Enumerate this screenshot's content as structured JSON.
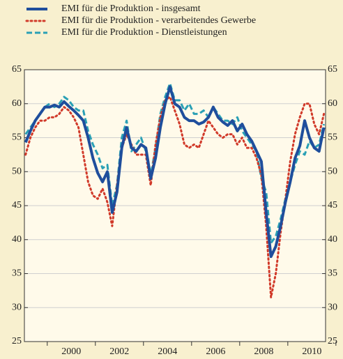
{
  "chart_data": {
    "type": "line",
    "x": [
      1998.6,
      1998.8,
      1999.0,
      1999.2,
      1999.4,
      1999.6,
      1999.8,
      2000.0,
      2000.2,
      2000.4,
      2000.6,
      2000.8,
      2001.0,
      2001.2,
      2001.4,
      2001.6,
      2001.8,
      2002.0,
      2002.2,
      2002.4,
      2002.6,
      2002.8,
      2003.0,
      2003.2,
      2003.4,
      2003.6,
      2003.8,
      2004.0,
      2004.2,
      2004.4,
      2004.6,
      2004.8,
      2005.0,
      2005.2,
      2005.4,
      2005.6,
      2005.8,
      2006.0,
      2006.2,
      2006.4,
      2006.6,
      2006.8,
      2007.0,
      2007.2,
      2007.4,
      2007.6,
      2007.8,
      2008.0,
      2008.2,
      2008.4,
      2008.6,
      2008.8,
      2009.0,
      2009.2,
      2009.4,
      2009.6,
      2009.8,
      2010.0,
      2010.2,
      2010.4,
      2010.6,
      2010.8,
      2011.0
    ],
    "series": [
      {
        "name": "EMI für die Produktion - insgesamt",
        "color": "#1f4e9c",
        "style": "solid",
        "values": [
          54.3,
          56,
          57.5,
          58.5,
          59.5,
          59.5,
          59.8,
          59.5,
          60.3,
          59.6,
          59,
          58.3,
          57.5,
          55,
          52,
          49.8,
          48.5,
          50,
          44,
          47,
          53.5,
          56.5,
          53.5,
          53,
          54,
          53.5,
          49,
          52,
          56.5,
          60,
          62.5,
          60,
          59.5,
          58,
          57.5,
          57.5,
          57,
          57.3,
          58,
          59.5,
          58,
          57.3,
          56.8,
          57.5,
          56,
          57,
          55.5,
          54.5,
          53,
          51.5,
          44,
          37.5,
          39,
          42,
          45.5,
          48.5,
          52,
          53.8,
          57.5,
          55,
          53.5,
          53,
          56.5
        ]
      },
      {
        "name": "EMI für die Produktion - verarbeitendes Gewerbe",
        "color": "#d13a2a",
        "style": "dotted",
        "values": [
          52.5,
          55,
          56.5,
          57.5,
          57.5,
          58,
          58,
          58.5,
          59.5,
          59,
          58,
          56.5,
          52.5,
          48.5,
          46.5,
          46,
          47.5,
          45.5,
          42,
          48,
          53.5,
          55.5,
          54,
          52.5,
          52.5,
          52.5,
          48,
          54,
          58,
          60.5,
          61,
          59,
          57,
          54,
          53.5,
          54,
          53.5,
          55.5,
          57.5,
          56.5,
          55.5,
          55,
          55.5,
          55.5,
          54,
          55,
          53.5,
          53.5,
          52,
          49.5,
          42,
          31.5,
          35,
          41,
          46,
          51.5,
          55.5,
          58,
          60,
          60,
          57,
          55.5,
          58.5
        ]
      },
      {
        "name": "EMI für die Produktion - Dienstleistungen",
        "color": "#2aa0b5",
        "style": "dashed",
        "values": [
          55.5,
          56.5,
          57.5,
          58.5,
          59.5,
          60,
          59.5,
          60,
          61,
          60.5,
          59.5,
          59,
          59,
          56,
          54,
          52.5,
          50.5,
          51,
          45,
          48,
          55,
          57.5,
          53,
          54,
          55,
          53,
          49.5,
          53.5,
          58.5,
          61,
          63,
          60.5,
          60.5,
          59,
          60,
          58.5,
          58.5,
          59,
          58,
          59.5,
          58.5,
          57.5,
          57.5,
          57,
          58,
          56,
          55,
          54,
          53,
          49,
          47,
          39.5,
          40.5,
          43,
          46,
          48.5,
          51,
          53,
          52.5,
          54.5,
          53.5,
          54,
          57
        ]
      }
    ],
    "xlim": [
      1998.55,
      2011.07
    ],
    "xticks": [
      {
        "value": 2000.5,
        "label": "2000"
      },
      {
        "value": 2002.5,
        "label": "2002"
      },
      {
        "value": 2004.5,
        "label": "2004"
      },
      {
        "value": 2006.5,
        "label": "2006"
      },
      {
        "value": 2008.5,
        "label": "2008"
      },
      {
        "value": 2010.5,
        "label": "2010"
      }
    ],
    "ylim": [
      25,
      65
    ],
    "yticks": [
      25,
      30,
      35,
      40,
      45,
      50,
      55,
      60,
      65
    ],
    "grid": true
  }
}
